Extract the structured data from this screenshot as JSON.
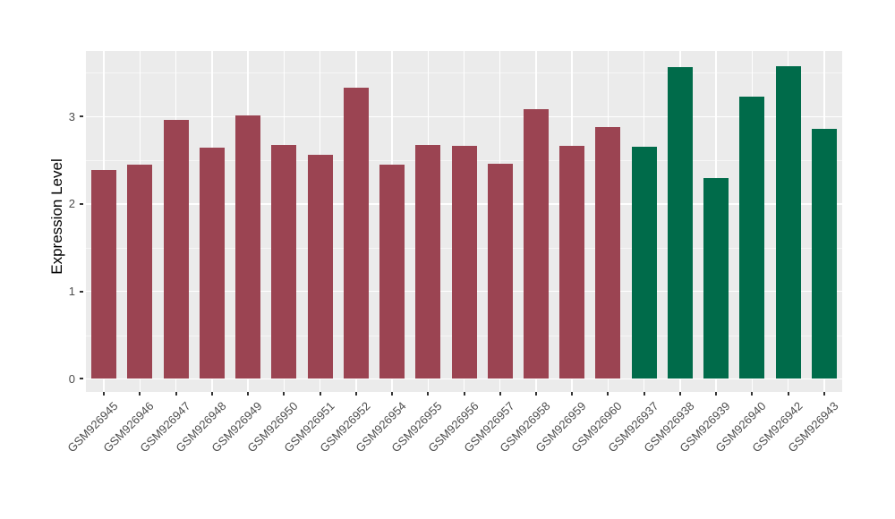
{
  "figure": {
    "background": "#FFFFFF",
    "panel_background": "#EBEBEB",
    "grid_major_color": "#FFFFFF",
    "grid_minor_color": "rgba(255,255,255,0.55)",
    "axis_text_color": "#4D4D4D",
    "axis_title_color": "#000000",
    "tick_mark_color": "#333333"
  },
  "chart_data": {
    "type": "bar",
    "title": "",
    "xlabel": "",
    "ylabel": "Expression Level",
    "ylim": [
      -0.15,
      3.75
    ],
    "y_ticks": [
      0,
      1,
      2,
      3
    ],
    "y_minor_ticks": [
      0.5,
      1.5,
      2.5,
      3.5
    ],
    "grid": true,
    "legend_position": "none",
    "bar_width_fraction": 0.7,
    "groups": [
      {
        "name": "maroon-group",
        "color": "#9B4452"
      },
      {
        "name": "green-group",
        "color": "#006B4A"
      }
    ],
    "bars": [
      {
        "label": "GSM926945",
        "value": 2.39,
        "group": 0
      },
      {
        "label": "GSM926946",
        "value": 2.45,
        "group": 0
      },
      {
        "label": "GSM926947",
        "value": 2.96,
        "group": 0
      },
      {
        "label": "GSM926948",
        "value": 2.64,
        "group": 0
      },
      {
        "label": "GSM926949",
        "value": 3.01,
        "group": 0
      },
      {
        "label": "GSM926950",
        "value": 2.68,
        "group": 0
      },
      {
        "label": "GSM926951",
        "value": 2.56,
        "group": 0
      },
      {
        "label": "GSM926952",
        "value": 3.33,
        "group": 0
      },
      {
        "label": "GSM926954",
        "value": 2.45,
        "group": 0
      },
      {
        "label": "GSM926955",
        "value": 2.68,
        "group": 0
      },
      {
        "label": "GSM926956",
        "value": 2.67,
        "group": 0
      },
      {
        "label": "GSM926957",
        "value": 2.46,
        "group": 0
      },
      {
        "label": "GSM926958",
        "value": 3.08,
        "group": 0
      },
      {
        "label": "GSM926959",
        "value": 2.67,
        "group": 0
      },
      {
        "label": "GSM926960",
        "value": 2.88,
        "group": 0
      },
      {
        "label": "GSM926937",
        "value": 2.65,
        "group": 1
      },
      {
        "label": "GSM926938",
        "value": 3.57,
        "group": 1
      },
      {
        "label": "GSM926939",
        "value": 2.3,
        "group": 1
      },
      {
        "label": "GSM926940",
        "value": 3.23,
        "group": 1
      },
      {
        "label": "GSM926942",
        "value": 3.58,
        "group": 1
      },
      {
        "label": "GSM926943",
        "value": 2.86,
        "group": 1
      }
    ]
  }
}
